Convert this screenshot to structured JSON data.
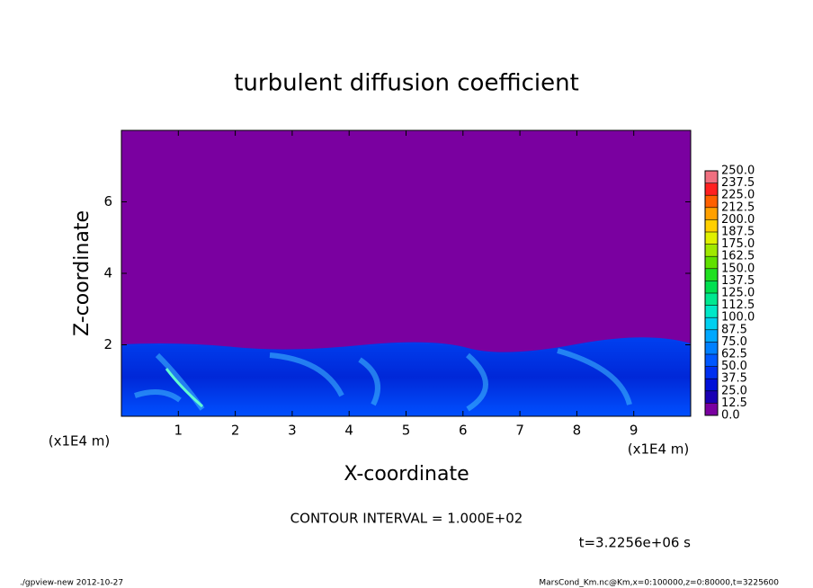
{
  "chart_data": {
    "type": "contour",
    "title": "turbulent diffusion coefficient",
    "xlabel": "X-coordinate",
    "ylabel": "Z-coordinate",
    "x_unit_label": "(x1E4 m)",
    "y_unit_label": "(x1E4 m)",
    "xlim": [
      0,
      10
    ],
    "ylim": [
      0,
      8
    ],
    "xticks": [
      1,
      2,
      3,
      4,
      5,
      6,
      7,
      8,
      9
    ],
    "yticks": [
      2,
      4,
      6
    ],
    "colorbar": {
      "lim": [
        0,
        250
      ],
      "ticks": [
        {
          "value": 0,
          "label": "0.0"
        },
        {
          "value": 12.5,
          "label": "12.5"
        },
        {
          "value": 25,
          "label": "25.0"
        },
        {
          "value": 37.5,
          "label": "37.5"
        },
        {
          "value": 50,
          "label": "50.0"
        },
        {
          "value": 62.5,
          "label": "62.5"
        },
        {
          "value": 75,
          "label": "75.0"
        },
        {
          "value": 87.5,
          "label": "87.5"
        },
        {
          "value": 100,
          "label": "100.0"
        },
        {
          "value": 112.5,
          "label": "112.5"
        },
        {
          "value": 125,
          "label": "125.0"
        },
        {
          "value": 137.5,
          "label": "137.5"
        },
        {
          "value": 150,
          "label": "150.0"
        },
        {
          "value": 162.5,
          "label": "162.5"
        },
        {
          "value": 175,
          "label": "175.0"
        },
        {
          "value": 187.5,
          "label": "187.5"
        },
        {
          "value": 200,
          "label": "200.0"
        },
        {
          "value": 212.5,
          "label": "212.5"
        },
        {
          "value": 225,
          "label": "225.0"
        },
        {
          "value": 237.5,
          "label": "237.5"
        },
        {
          "value": 250,
          "label": "250.0"
        }
      ],
      "colors": [
        "#7a00a0",
        "#1a00b4",
        "#0010d8",
        "#0030f0",
        "#0058ff",
        "#0080ff",
        "#00a8ff",
        "#00d0f0",
        "#00e8c8",
        "#00e890",
        "#00e050",
        "#20e020",
        "#60e000",
        "#a0e800",
        "#e0f000",
        "#ffd000",
        "#ffa000",
        "#ff6000",
        "#ff2020",
        "#f07080"
      ]
    },
    "contour_interval": "CONTOUR INTERVAL = 1.000E+02",
    "time_label": "t=3.2256e+06 s",
    "footer_left": "./gpview-new  2012-10-27",
    "footer_right": "MarsCond_Km.nc@Km,x=0:100000,z=0:80000,t=3225600"
  }
}
